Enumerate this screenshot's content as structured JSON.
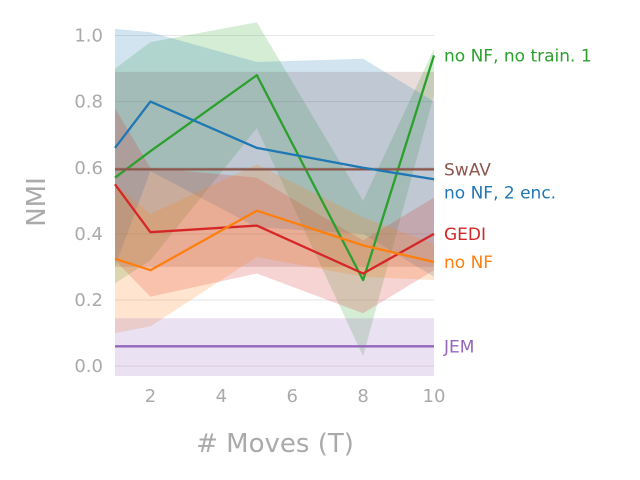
{
  "chart_data": {
    "type": "line",
    "title": "",
    "xlabel": "# Moves (T)",
    "ylabel": "NMI",
    "xlim": [
      1,
      10
    ],
    "ylim": [
      -0.03,
      1.05
    ],
    "xticks": [
      2,
      4,
      6,
      8,
      10
    ],
    "yticks": [
      0.0,
      0.2,
      0.4,
      0.6,
      0.8,
      1.0
    ],
    "ytick_labels": [
      "0.0",
      "0.2",
      "0.4",
      "0.6",
      "0.8",
      "1.0"
    ],
    "grid": "horizontal",
    "legend": "inline labels at right end of each line",
    "series": [
      {
        "name": "no NF, no train. 1",
        "color": "#2ca02c",
        "x": [
          1,
          2,
          5,
          8,
          10
        ],
        "y": [
          0.57,
          0.65,
          0.88,
          0.26,
          0.94
        ],
        "lower": [
          0.25,
          0.32,
          0.72,
          0.03,
          0.82
        ],
        "upper": [
          0.9,
          0.98,
          1.04,
          0.5,
          0.96
        ]
      },
      {
        "name": "SwAV",
        "color": "#8c564b",
        "x": [
          1,
          10
        ],
        "y": [
          0.595,
          0.595
        ],
        "lower": [
          0.3,
          0.3
        ],
        "upper": [
          0.89,
          0.89
        ]
      },
      {
        "name": "no NF, 2 enc.",
        "color": "#1f77b4",
        "x": [
          1,
          2,
          5,
          8,
          10
        ],
        "y": [
          0.66,
          0.8,
          0.66,
          0.6,
          0.565
        ],
        "lower": [
          0.3,
          0.59,
          0.42,
          0.4,
          0.27
        ],
        "upper": [
          1.02,
          1.01,
          0.92,
          0.93,
          0.8
        ]
      },
      {
        "name": "GEDI",
        "color": "#d62728",
        "x": [
          1,
          2,
          5,
          8,
          10
        ],
        "y": [
          0.55,
          0.405,
          0.425,
          0.28,
          0.4
        ],
        "lower": [
          0.32,
          0.21,
          0.28,
          0.16,
          0.29
        ],
        "upper": [
          0.78,
          0.6,
          0.57,
          0.38,
          0.51
        ]
      },
      {
        "name": "no NF",
        "color": "#ff7f0e",
        "x": [
          1,
          2,
          5,
          8,
          10
        ],
        "y": [
          0.325,
          0.29,
          0.47,
          0.365,
          0.315
        ],
        "lower": [
          0.1,
          0.12,
          0.33,
          0.27,
          0.26
        ],
        "upper": [
          0.55,
          0.46,
          0.61,
          0.45,
          0.37
        ]
      },
      {
        "name": "JEM",
        "color": "#9467bd",
        "x": [
          1,
          10
        ],
        "y": [
          0.06,
          0.06
        ],
        "lower": [
          -0.03,
          -0.03
        ],
        "upper": [
          0.145,
          0.145
        ]
      }
    ]
  }
}
